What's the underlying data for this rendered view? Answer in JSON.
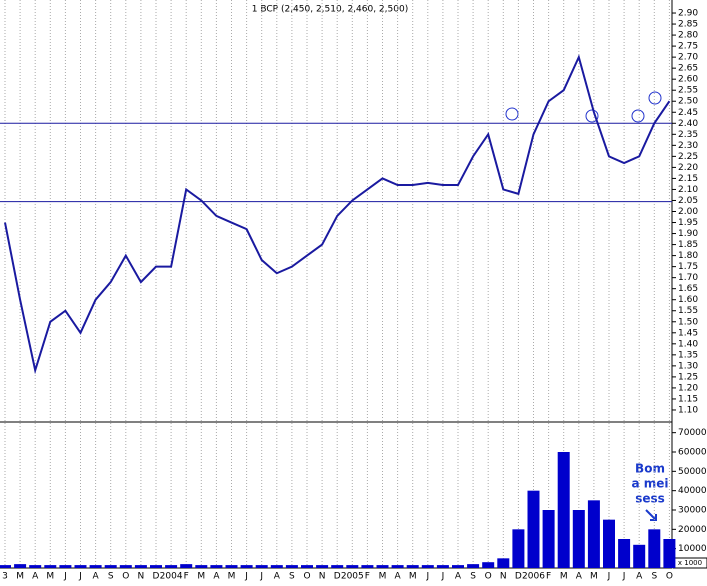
{
  "chart_data": {
    "type": "line",
    "title": "1 BCP (2,450, 2,510, 2,460, 2,500)",
    "annotation": [
      "Bom",
      "a mei",
      "sess"
    ],
    "volume_unit": "x 1000",
    "categories": [
      "3",
      "M",
      "A",
      "M",
      "J",
      "J",
      "A",
      "S",
      "O",
      "N",
      "D",
      "2004",
      "F",
      "M",
      "A",
      "M",
      "J",
      "J",
      "A",
      "S",
      "O",
      "N",
      "D",
      "2005",
      "F",
      "M",
      "A",
      "M",
      "J",
      "J",
      "A",
      "S",
      "O",
      "N",
      "D",
      "2006",
      "F",
      "M",
      "A",
      "M",
      "J",
      "J",
      "A",
      "S",
      "O"
    ],
    "series": [
      {
        "name": "BCP",
        "color": "#1a1aa0",
        "values": [
          1.95,
          1.6,
          1.28,
          1.5,
          1.55,
          1.45,
          1.6,
          1.68,
          1.8,
          1.68,
          1.75,
          1.75,
          2.1,
          2.05,
          1.98,
          1.95,
          1.92,
          1.78,
          1.72,
          1.75,
          1.8,
          1.85,
          1.98,
          2.05,
          2.1,
          2.15,
          2.12,
          2.12,
          2.13,
          2.12,
          2.12,
          2.25,
          2.35,
          2.1,
          2.08,
          2.35,
          2.5,
          2.55,
          2.7,
          2.45,
          2.25,
          2.22,
          2.25,
          2.4,
          2.5
        ]
      },
      {
        "name": "Volume",
        "axis": "y2",
        "color": "#0000cc",
        "values": [
          1500,
          2000,
          1500,
          1500,
          1500,
          1500,
          1500,
          1500,
          1500,
          1500,
          1500,
          1500,
          2000,
          1500,
          1500,
          1500,
          1500,
          1500,
          1500,
          1500,
          1500,
          1500,
          1500,
          1500,
          1500,
          1500,
          1500,
          1500,
          1500,
          1500,
          1500,
          2000,
          3000,
          5000,
          20000,
          40000,
          30000,
          60000,
          30000,
          35000,
          25000,
          15000,
          12000,
          20000,
          15000
        ]
      }
    ],
    "hlines": [
      2.4,
      2.045
    ],
    "ylim": [
      1.05,
      2.95
    ],
    "yticks": [
      {
        "value": 1.1,
        "label": "1.10"
      },
      {
        "value": 1.15,
        "label": "1.15"
      },
      {
        "value": 1.2,
        "label": "1.20"
      },
      {
        "value": 1.25,
        "label": "1.25"
      },
      {
        "value": 1.3,
        "label": "1.30"
      },
      {
        "value": 1.35,
        "label": "1.35"
      },
      {
        "value": 1.4,
        "label": "1.40"
      },
      {
        "value": 1.45,
        "label": "1.45"
      },
      {
        "value": 1.5,
        "label": "1.50"
      },
      {
        "value": 1.55,
        "label": "1.55"
      },
      {
        "value": 1.6,
        "label": "1.60"
      },
      {
        "value": 1.65,
        "label": "1.65"
      },
      {
        "value": 1.7,
        "label": "1.70"
      },
      {
        "value": 1.75,
        "label": "1.75"
      },
      {
        "value": 1.8,
        "label": "1.80"
      },
      {
        "value": 1.85,
        "label": "1.85"
      },
      {
        "value": 1.9,
        "label": "1.90"
      },
      {
        "value": 1.95,
        "label": "1.95"
      },
      {
        "value": 2.0,
        "label": "2.00"
      },
      {
        "value": 2.05,
        "label": "2.05"
      },
      {
        "value": 2.1,
        "label": "2.10"
      },
      {
        "value": 2.15,
        "label": "2.15"
      },
      {
        "value": 2.2,
        "label": "2.20"
      },
      {
        "value": 2.25,
        "label": "2.25"
      },
      {
        "value": 2.3,
        "label": "2.30"
      },
      {
        "value": 2.35,
        "label": "2.35"
      },
      {
        "value": 2.4,
        "label": "2.40"
      },
      {
        "value": 2.45,
        "label": "2.45"
      },
      {
        "value": 2.5,
        "label": "2.50"
      },
      {
        "value": 2.55,
        "label": "2.55"
      },
      {
        "value": 2.6,
        "label": "2.60"
      },
      {
        "value": 2.65,
        "label": "2.65"
      },
      {
        "value": 2.7,
        "label": "2.70"
      },
      {
        "value": 2.75,
        "label": "2.75"
      },
      {
        "value": 2.8,
        "label": "2.80"
      },
      {
        "value": 2.85,
        "label": "2.85"
      },
      {
        "value": 2.9,
        "label": "2.90"
      }
    ],
    "y2lim": [
      0,
      75000
    ],
    "y2ticks": [
      10000,
      20000,
      30000,
      40000,
      50000,
      60000,
      70000
    ],
    "grid": true
  }
}
